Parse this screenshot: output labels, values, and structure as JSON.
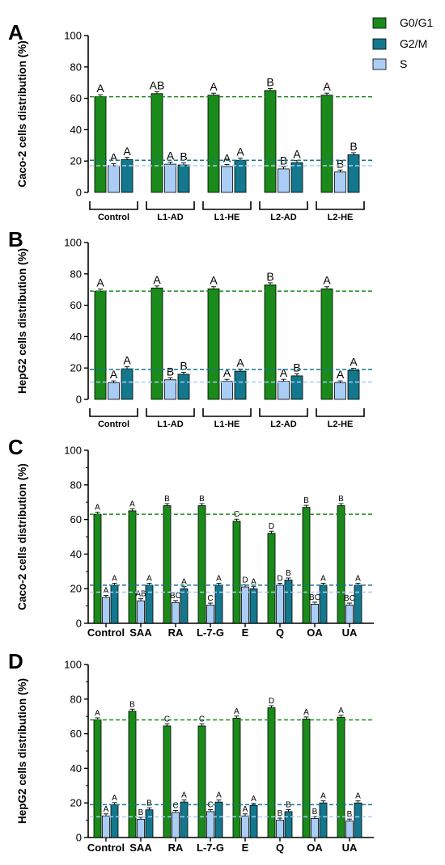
{
  "legend": {
    "items": [
      {
        "name": "G0/G1",
        "color": "#1a8a1a"
      },
      {
        "name": "G2/M",
        "color": "#13788d"
      },
      {
        "name": "S",
        "color": "#a9cdf5"
      }
    ],
    "position": "top-right"
  },
  "chart_data": [
    {
      "panel": "A",
      "type": "bar",
      "ylabel": "Caco-2 cells distribution (%)",
      "ylim": [
        0,
        100
      ],
      "yticks": [
        "0",
        "20",
        "40",
        "60",
        "80",
        "100"
      ],
      "categories": [
        "Control",
        "L1-AD",
        "L1-HE",
        "L2-AD",
        "L2-HE"
      ],
      "bar_order": [
        "G0/G1",
        "S",
        "G2/M"
      ],
      "series": [
        {
          "name": "G0/G1",
          "values": [
            61,
            63,
            62,
            65,
            62
          ],
          "letters": [
            "A",
            "AB",
            "A",
            "B",
            "A"
          ]
        },
        {
          "name": "S",
          "values": [
            17,
            18,
            16.5,
            15,
            13
          ],
          "letters": [
            "A",
            "A",
            "A",
            "B",
            "B"
          ]
        },
        {
          "name": "G2/M",
          "values": [
            21,
            17.5,
            20.5,
            19,
            24
          ],
          "letters": [
            "A",
            "B",
            "A",
            "A",
            "B"
          ]
        }
      ],
      "reference_lines": [
        61,
        20.5,
        17
      ]
    },
    {
      "panel": "B",
      "type": "bar",
      "ylabel": "HepG2 cells distribution (%)",
      "ylim": [
        0,
        100
      ],
      "yticks": [
        "0",
        "20",
        "40",
        "60",
        "80",
        "100"
      ],
      "categories": [
        "Control",
        "L1-AD",
        "L1-HE",
        "L2-AD",
        "L2-HE"
      ],
      "bar_order": [
        "G0/G1",
        "S",
        "G2/M"
      ],
      "series": [
        {
          "name": "G0/G1",
          "values": [
            69,
            71,
            70.5,
            73,
            70.5
          ],
          "letters": [
            "A",
            "A",
            "A",
            "B",
            "A"
          ]
        },
        {
          "name": "S",
          "values": [
            10.5,
            12.5,
            11.5,
            11.5,
            10.5
          ],
          "letters": [
            "A",
            "B",
            "A",
            "A",
            "A"
          ]
        },
        {
          "name": "G2/M",
          "values": [
            19.5,
            16,
            18,
            15,
            18.5
          ],
          "letters": [
            "A",
            "B",
            "A",
            "B",
            "A"
          ]
        }
      ],
      "reference_lines": [
        69,
        19,
        11
      ]
    },
    {
      "panel": "C",
      "type": "bar",
      "ylabel": "Caco-2 cells distribution (%)",
      "ylim": [
        0,
        100
      ],
      "yticks": [
        "0",
        "20",
        "40",
        "60",
        "80",
        "100"
      ],
      "categories": [
        "Control",
        "SAA",
        "RA",
        "L-7-G",
        "E",
        "Q",
        "OA",
        "UA"
      ],
      "bar_order": [
        "G0/G1",
        "S",
        "G2/M"
      ],
      "series": [
        {
          "name": "G0/G1",
          "values": [
            63,
            65,
            68,
            68,
            59,
            52,
            67,
            68
          ],
          "letters": [
            "A",
            "A",
            "B",
            "B",
            "C",
            "D",
            "B",
            "B"
          ]
        },
        {
          "name": "S",
          "values": [
            15,
            13,
            12,
            10.5,
            21,
            22,
            11,
            10.5
          ],
          "letters": [
            "A",
            "AB",
            "BC",
            "C",
            "D",
            "D",
            "BC",
            "BC"
          ]
        },
        {
          "name": "G2/M",
          "values": [
            22,
            22,
            20,
            22,
            20,
            25,
            22,
            22
          ],
          "letters": [
            "A",
            "A",
            "A",
            "A",
            "A",
            "B",
            "A",
            "A"
          ]
        }
      ],
      "reference_lines": [
        63,
        22,
        18
      ]
    },
    {
      "panel": "D",
      "type": "bar",
      "ylabel": "HepG2 cells distribution (%)",
      "ylim": [
        0,
        100
      ],
      "yticks": [
        "0",
        "20",
        "40",
        "60",
        "80",
        "100"
      ],
      "categories": [
        "Control",
        "SAA",
        "RA",
        "L-7-G",
        "E",
        "Q",
        "OA",
        "UA"
      ],
      "bar_order": [
        "G0/G1",
        "S",
        "G2/M"
      ],
      "series": [
        {
          "name": "G0/G1",
          "values": [
            68,
            73,
            64.5,
            64.5,
            69,
            75,
            68.5,
            69.5
          ],
          "letters": [
            "A",
            "B",
            "C",
            "C",
            "A",
            "D",
            "A",
            "A"
          ]
        },
        {
          "name": "S",
          "values": [
            12.5,
            10.5,
            14.5,
            15,
            12.5,
            10,
            11,
            9.5
          ],
          "letters": [
            "A",
            "B",
            "C",
            "C",
            "A",
            "B",
            "B",
            "B"
          ]
        },
        {
          "name": "G2/M",
          "values": [
            19,
            16,
            20.5,
            20.5,
            18.5,
            15,
            20,
            20
          ],
          "letters": [
            "A",
            "B",
            "A",
            "A",
            "A",
            "B",
            "A",
            "A"
          ]
        }
      ],
      "reference_lines": [
        68,
        19,
        12
      ]
    }
  ]
}
